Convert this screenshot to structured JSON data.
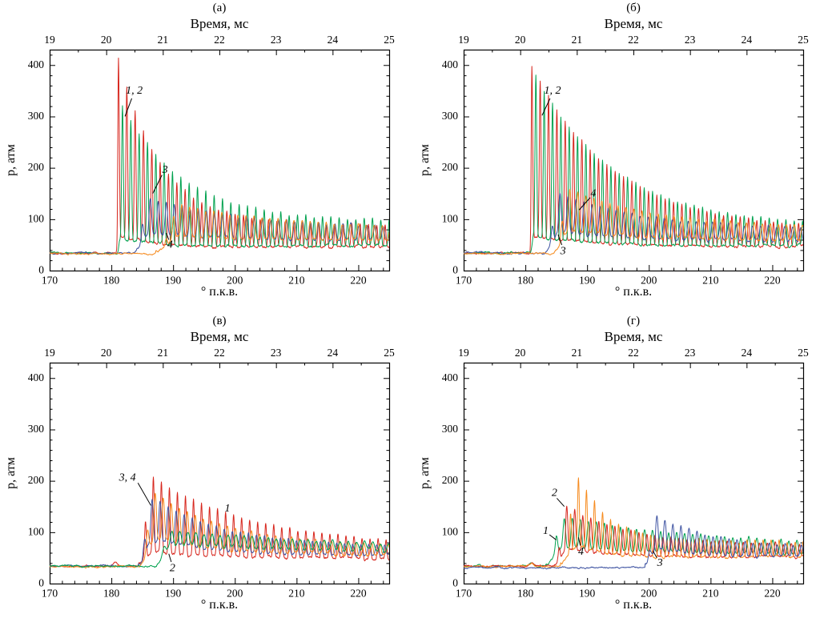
{
  "figure": {
    "background": "#ffffff",
    "frame_color": "#000000"
  },
  "chart_data": [
    {
      "id": "a",
      "type": "line",
      "label": "(а)",
      "top_axis_title": "Время, мс",
      "ylabel": "p, атм",
      "xlabel": "° п.к.в.",
      "x_range": [
        170,
        225
      ],
      "x_ticks": [
        170,
        180,
        190,
        200,
        210,
        220
      ],
      "x_minor_step": 2,
      "top_range": [
        19,
        25
      ],
      "top_ticks": [
        19,
        20,
        21,
        22,
        23,
        24,
        25
      ],
      "top_minor_step": 0.5,
      "y_range": [
        0,
        430
      ],
      "y_ticks": [
        0,
        100,
        200,
        300,
        400
      ],
      "y_minor_step": 20,
      "series": [
        {
          "name": "1",
          "color": "#d7261d",
          "baseline": 34,
          "onset": 180.8,
          "rise": 0.35,
          "peak": 415,
          "tau": 7,
          "end_top": 88,
          "bot_start": 38,
          "bot_end": 43,
          "period": 1.35,
          "phase": 181.15,
          "sharp": 5,
          "floor": 0.08,
          "noise": 2.5,
          "seed": 101
        },
        {
          "name": "2",
          "color": "#00a14e",
          "baseline": 34,
          "onset": 181.0,
          "rise": 0.4,
          "peak": 330,
          "tau": 10,
          "end_top": 96,
          "bot_start": 38,
          "bot_end": 45,
          "period": 1.35,
          "phase": 181.8,
          "sharp": 5,
          "floor": 0.08,
          "noise": 2.5,
          "seed": 102
        },
        {
          "name": "3",
          "color": "#3d52a1",
          "baseline": 34,
          "onset": 183.6,
          "rise": 2.7,
          "peak": 142,
          "tau": 16,
          "end_top": 82,
          "bot_start": 40,
          "bot_end": 47,
          "period": 1.3,
          "phase": 186.3,
          "sharp": 2.2,
          "floor": 0.32,
          "noise": 2.5,
          "seed": 103
        },
        {
          "name": "4",
          "color": "#f68b1f",
          "baseline": 33,
          "onset": 187.2,
          "rise": 4.2,
          "peak": 128,
          "tau": 18,
          "end_top": 80,
          "bot_start": 40,
          "bot_end": 46,
          "period": 1.3,
          "phase": 191.4,
          "sharp": 2.2,
          "floor": 0.32,
          "noise": 2.5,
          "seed": 104
        }
      ],
      "annotations": [
        {
          "text": "1, 2",
          "x": 183.7,
          "y": 350,
          "leader": {
            "x1": 183.3,
            "y1": 335,
            "x2": 182.2,
            "y2": 300
          }
        },
        {
          "text": "3",
          "x": 188.7,
          "y": 196,
          "leader": {
            "x1": 188.2,
            "y1": 186,
            "x2": 186.7,
            "y2": 150
          }
        },
        {
          "text": "4",
          "x": 189.5,
          "y": 50,
          "leader": {
            "x1": 189.3,
            "y1": 60,
            "x2": 188.9,
            "y2": 73
          }
        }
      ]
    },
    {
      "id": "b",
      "type": "line",
      "label": "(б)",
      "top_axis_title": "Время, мс",
      "ylabel": "p, атм",
      "xlabel": "° п.к.в.",
      "x_range": [
        170,
        225
      ],
      "x_ticks": [
        170,
        180,
        190,
        200,
        210,
        220
      ],
      "x_minor_step": 2,
      "top_range": [
        19,
        25
      ],
      "top_ticks": [
        19,
        20,
        21,
        22,
        23,
        24,
        25
      ],
      "top_minor_step": 0.5,
      "y_range": [
        0,
        430
      ],
      "y_ticks": [
        0,
        100,
        200,
        300,
        400
      ],
      "y_minor_step": 20,
      "series": [
        {
          "name": "1",
          "color": "#d7261d",
          "baseline": 34,
          "onset": 180.7,
          "rise": 0.35,
          "peak": 400,
          "tau": 13,
          "end_top": 80,
          "bot_start": 38,
          "bot_end": 44,
          "period": 1.35,
          "phase": 181.05,
          "sharp": 5,
          "floor": 0.08,
          "noise": 2.5,
          "seed": 201
        },
        {
          "name": "2",
          "color": "#00a14e",
          "baseline": 34,
          "onset": 180.9,
          "rise": 0.4,
          "peak": 390,
          "tau": 13,
          "end_top": 86,
          "bot_start": 38,
          "bot_end": 45,
          "period": 1.35,
          "phase": 181.7,
          "sharp": 5,
          "floor": 0.08,
          "noise": 2.5,
          "seed": 202
        },
        {
          "name": "3",
          "color": "#3d52a1",
          "baseline": 34,
          "onset": 183.3,
          "rise": 2.3,
          "peak": 150,
          "tau": 14,
          "end_top": 80,
          "bot_start": 40,
          "bot_end": 46,
          "period": 1.3,
          "phase": 185.6,
          "sharp": 2.2,
          "floor": 0.32,
          "noise": 2.5,
          "seed": 203
        },
        {
          "name": "4",
          "color": "#f68b1f",
          "baseline": 33,
          "onset": 184.6,
          "rise": 2.6,
          "peak": 158,
          "tau": 14,
          "end_top": 83,
          "bot_start": 40,
          "bot_end": 46,
          "period": 1.3,
          "phase": 187.2,
          "sharp": 2.2,
          "floor": 0.32,
          "noise": 2.5,
          "seed": 204
        }
      ],
      "annotations": [
        {
          "text": "1, 2",
          "x": 184.4,
          "y": 350,
          "leader": {
            "x1": 184.0,
            "y1": 335,
            "x2": 182.7,
            "y2": 302
          }
        },
        {
          "text": "4",
          "x": 191.0,
          "y": 150,
          "leader": {
            "x1": 190.5,
            "y1": 142,
            "x2": 188.7,
            "y2": 118
          }
        },
        {
          "text": "3",
          "x": 186.1,
          "y": 38,
          "leader": {
            "x1": 185.9,
            "y1": 50,
            "x2": 185.3,
            "y2": 70
          }
        }
      ]
    },
    {
      "id": "v",
      "type": "line",
      "label": "(в)",
      "top_axis_title": "Время, мс",
      "ylabel": "p, атм",
      "xlabel": "° п.к.в.",
      "x_range": [
        170,
        225
      ],
      "x_ticks": [
        170,
        180,
        190,
        200,
        210,
        220
      ],
      "x_minor_step": 2,
      "top_range": [
        19,
        25
      ],
      "top_ticks": [
        19,
        20,
        21,
        22,
        23,
        24,
        25
      ],
      "top_minor_step": 0.5,
      "y_range": [
        0,
        430
      ],
      "y_ticks": [
        0,
        100,
        200,
        300,
        400
      ],
      "y_minor_step": 20,
      "series": [
        {
          "name": "1",
          "color": "#d7261d",
          "baseline": 34,
          "onset": 184.2,
          "rise": 2.6,
          "peak": 205,
          "tau": 17,
          "end_top": 72,
          "bot_start": 40,
          "bot_end": 44,
          "period": 1.3,
          "phase": 186.8,
          "sharp": 4,
          "floor": 0.12,
          "noise": 2.5,
          "seed": 301,
          "prebump": {
            "x": 180.7,
            "h": 9,
            "w": 0.5
          }
        },
        {
          "name": "3",
          "color": "#3d52a1",
          "baseline": 34,
          "onset": 184.4,
          "rise": 2.2,
          "peak": 168,
          "tau": 12,
          "end_top": 70,
          "bot_start": 40,
          "bot_end": 45,
          "period": 1.3,
          "phase": 186.6,
          "sharp": 2,
          "floor": 0.35,
          "noise": 2.5,
          "seed": 303
        },
        {
          "name": "4",
          "color": "#f68b1f",
          "baseline": 33,
          "onset": 184.6,
          "rise": 2.5,
          "peak": 175,
          "tau": 12,
          "end_top": 73,
          "bot_start": 40,
          "bot_end": 45,
          "period": 1.3,
          "phase": 187.1,
          "sharp": 2,
          "floor": 0.35,
          "noise": 2.5,
          "seed": 304
        },
        {
          "name": "2",
          "color": "#00a14e",
          "baseline": 34,
          "onset": 186.9,
          "rise": 2.9,
          "peak": 102,
          "tau": 30,
          "end_top": 70,
          "bot_start": 42,
          "bot_end": 46,
          "period": 1.3,
          "phase": 189.8,
          "sharp": 1.2,
          "floor": 0.55,
          "noise": 2.5,
          "seed": 302
        }
      ],
      "annotations": [
        {
          "text": "3, 4",
          "x": 182.6,
          "y": 206,
          "leader": {
            "x1": 184.3,
            "y1": 196,
            "x2": 186.4,
            "y2": 152
          }
        },
        {
          "text": "1",
          "x": 198.8,
          "y": 146,
          "leader": null
        },
        {
          "text": "2",
          "x": 189.9,
          "y": 30,
          "leader": {
            "x1": 189.7,
            "y1": 42,
            "x2": 189.3,
            "y2": 58
          }
        }
      ]
    },
    {
      "id": "g",
      "type": "line",
      "label": "(г)",
      "top_axis_title": "Время, мс",
      "ylabel": "p, атм",
      "xlabel": "° п.к.в.",
      "x_range": [
        170,
        225
      ],
      "x_ticks": [
        170,
        180,
        190,
        200,
        210,
        220
      ],
      "x_minor_step": 2,
      "top_range": [
        19,
        25
      ],
      "top_ticks": [
        19,
        20,
        21,
        22,
        23,
        24,
        25
      ],
      "top_minor_step": 0.5,
      "y_range": [
        0,
        430
      ],
      "y_ticks": [
        0,
        100,
        200,
        300,
        400
      ],
      "y_minor_step": 20,
      "series": [
        {
          "name": "1",
          "color": "#00a14e",
          "baseline": 34,
          "onset": 183.3,
          "rise": 3.0,
          "peak": 128,
          "tau": 25,
          "end_top": 72,
          "bot_start": 39,
          "bot_end": 44,
          "period": 1.3,
          "phase": 186.3,
          "sharp": 2,
          "floor": 0.35,
          "noise": 2.5,
          "seed": 401,
          "prebump": {
            "x": 181.0,
            "h": 7,
            "w": 0.5
          }
        },
        {
          "name": "2",
          "color": "#d7261d",
          "baseline": 34,
          "onset": 184.7,
          "rise": 2.0,
          "peak": 152,
          "tau": 10,
          "end_top": 76,
          "bot_start": 39,
          "bot_end": 44,
          "period": 1.3,
          "phase": 186.7,
          "sharp": 3,
          "floor": 0.25,
          "noise": 2.5,
          "seed": 402,
          "prebump": {
            "x": 181.0,
            "h": 6,
            "w": 0.5
          }
        },
        {
          "name": "4",
          "color": "#f68b1f",
          "baseline": 33,
          "onset": 185.7,
          "rise": 2.9,
          "peak": 208,
          "tau": 5,
          "end_top": 82,
          "bot_start": 40,
          "bot_end": 45,
          "period": 1.3,
          "phase": 188.6,
          "sharp": 4,
          "floor": 0.2,
          "noise": 2.5,
          "seed": 404,
          "prebump": {
            "x": 181.0,
            "h": 6,
            "w": 0.5
          }
        },
        {
          "name": "3",
          "color": "#3d52a1",
          "baseline": 31,
          "onset": 199.4,
          "rise": 1.9,
          "peak": 132,
          "tau": 10,
          "end_top": 66,
          "bot_start": 38,
          "bot_end": 44,
          "period": 1.3,
          "phase": 201.3,
          "sharp": 2,
          "floor": 0.3,
          "noise": 2.5,
          "seed": 403
        }
      ],
      "annotations": [
        {
          "text": "2",
          "x": 184.7,
          "y": 176,
          "leader": {
            "x1": 185.1,
            "y1": 166,
            "x2": 186.3,
            "y2": 150
          }
        },
        {
          "text": "1",
          "x": 183.3,
          "y": 102,
          "leader": {
            "x1": 183.9,
            "y1": 95,
            "x2": 185.0,
            "y2": 85
          }
        },
        {
          "text": "4",
          "x": 189.0,
          "y": 62,
          "leader": {
            "x1": 188.9,
            "y1": 74,
            "x2": 188.6,
            "y2": 90
          }
        },
        {
          "text": "3",
          "x": 201.8,
          "y": 40,
          "leader": {
            "x1": 201.3,
            "y1": 50,
            "x2": 200.7,
            "y2": 63
          }
        }
      ]
    }
  ]
}
